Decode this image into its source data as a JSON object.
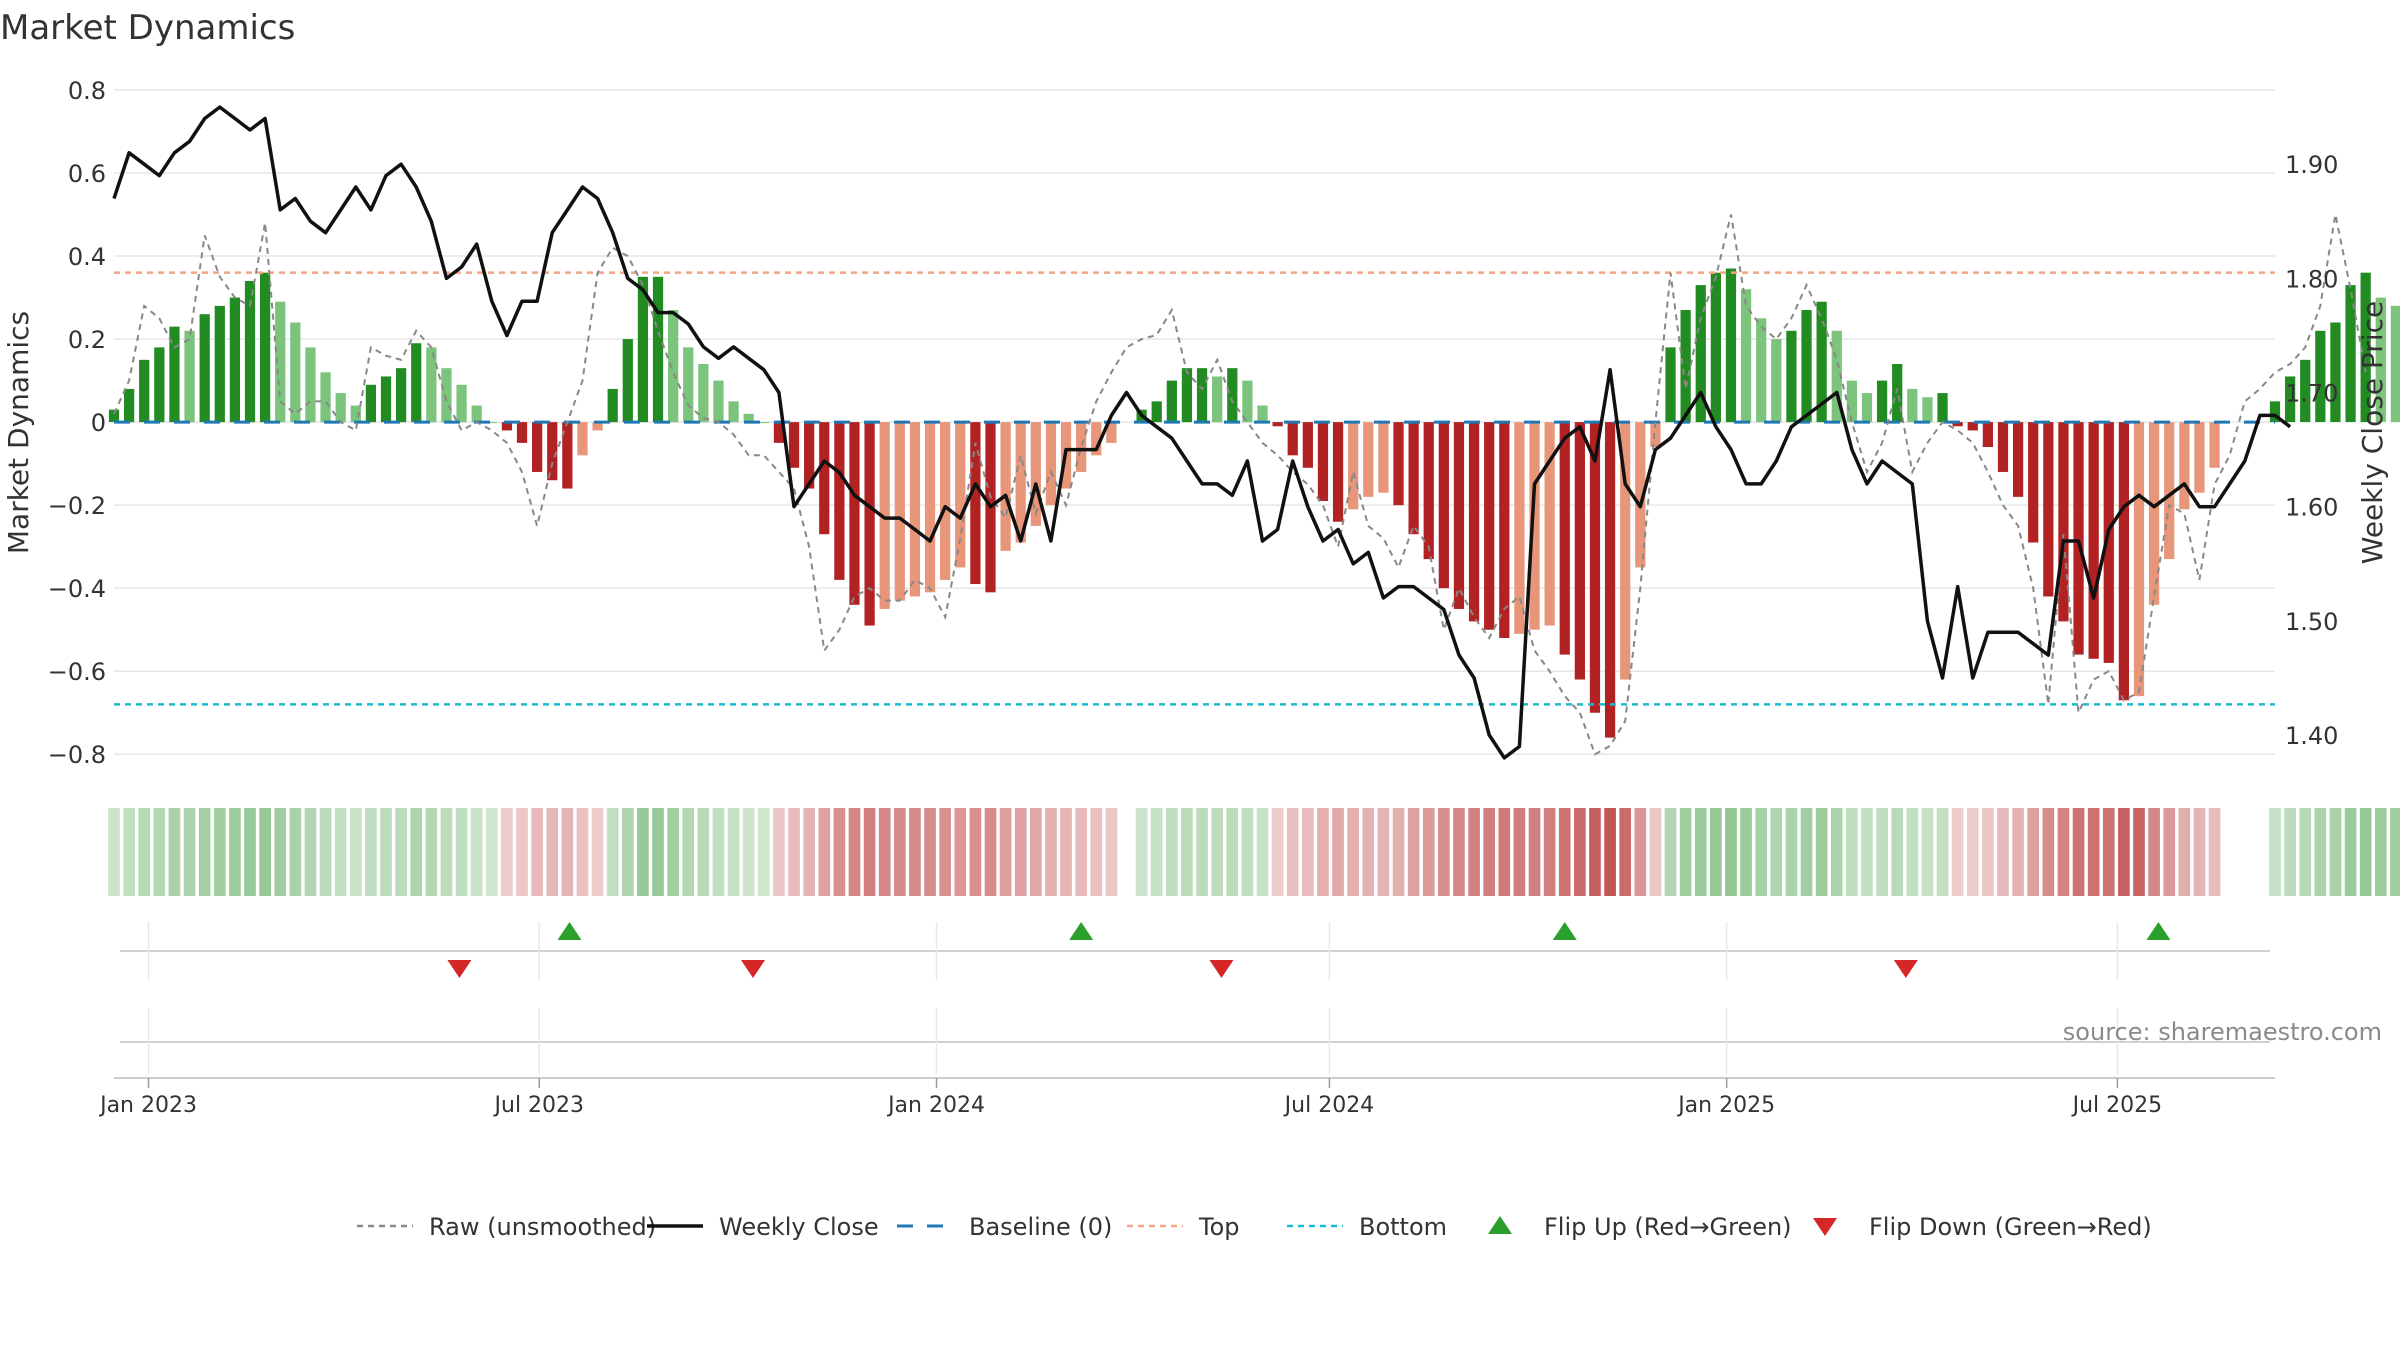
{
  "chart_data": {
    "type": "bar",
    "title": "Market Dynamics",
    "ylabel": "Market Dynamics",
    "y2label": "Weekly Close Price",
    "ylim": [
      -0.85,
      0.8
    ],
    "y2lim": [
      1.365,
      1.965
    ],
    "yticks": [
      0.8,
      0.6,
      0.4,
      0.2,
      0,
      -0.2,
      -0.4,
      -0.6,
      -0.8
    ],
    "ytick_labels": [
      "0.8",
      "0.6",
      "0.4",
      "0.2",
      "0",
      "−0.2",
      "−0.4",
      "−0.6",
      "−0.8"
    ],
    "y2ticks": [
      1.9,
      1.8,
      1.7,
      1.6,
      1.5,
      1.4
    ],
    "y2tick_labels": [
      "1.90",
      "1.80",
      "1.70",
      "1.60",
      "1.50",
      "1.40"
    ],
    "xaxis": {
      "start": "2022-12-16",
      "end": "2025-09-12",
      "ticks": [
        "2023-01-01",
        "2023-07-01",
        "2024-01-01",
        "2024-07-01",
        "2025-01-01",
        "2025-07-01"
      ],
      "tick_labels": [
        "Jan 2023",
        "Jul 2023",
        "Jan 2024",
        "Jul 2024",
        "Jan 2025",
        "Jul 2025"
      ]
    },
    "top_line": 0.36,
    "bottom_line": -0.68,
    "baseline": 0,
    "grid": true,
    "legend_position": "bottom-center",
    "source_text": "source: sharemaestro.com",
    "colors": {
      "strong_green": "#228b22",
      "light_green": "#7cc47c",
      "strong_red": "#b22222",
      "light_red": "#e8967a",
      "raw": "#888888",
      "close": "#111111",
      "baseline": "#1f77b4",
      "top": "#f4a582",
      "bottom": "#17becf",
      "flip_up": "#2ca02c",
      "flip_down": "#d62728"
    },
    "series": [
      {
        "name": "Market Dynamics",
        "start": "2022-12-16",
        "step_days": 7,
        "values": [
          0.03,
          0.08,
          0.15,
          0.18,
          0.23,
          0.22,
          0.26,
          0.28,
          0.3,
          0.34,
          0.36,
          0.29,
          0.24,
          0.18,
          0.12,
          0.07,
          0.04,
          0.09,
          0.11,
          0.13,
          0.19,
          0.18,
          0.13,
          0.09,
          0.04,
          0.0,
          -0.02,
          -0.05,
          -0.12,
          -0.14,
          -0.16,
          -0.08,
          -0.02,
          0.08,
          0.2,
          0.35,
          0.35,
          0.27,
          0.18,
          0.14,
          0.1,
          0.05,
          0.02,
          0.0,
          -0.05,
          -0.11,
          -0.16,
          -0.27,
          -0.38,
          -0.44,
          -0.49,
          -0.45,
          -0.43,
          -0.42,
          -0.41,
          -0.38,
          -0.35,
          -0.39,
          -0.41,
          -0.31,
          -0.29,
          -0.25,
          -0.2,
          -0.16,
          -0.12,
          -0.08,
          -0.05,
          null,
          0.03,
          0.05,
          0.1,
          0.13,
          0.13,
          0.11,
          0.13,
          0.1,
          0.04,
          -0.01,
          -0.08,
          -0.11,
          -0.19,
          -0.24,
          -0.21,
          -0.18,
          -0.17,
          -0.2,
          -0.27,
          -0.33,
          -0.4,
          -0.45,
          -0.48,
          -0.5,
          -0.52,
          -0.51,
          -0.5,
          -0.49,
          -0.56,
          -0.62,
          -0.7,
          -0.76,
          -0.62,
          -0.35,
          -0.06,
          0.18,
          0.27,
          0.33,
          0.36,
          0.37,
          0.32,
          0.25,
          0.2,
          0.22,
          0.27,
          0.29,
          0.22,
          0.1,
          0.07,
          0.1,
          0.14,
          0.08,
          0.06,
          0.07,
          -0.01,
          -0.02,
          -0.06,
          -0.12,
          -0.18,
          -0.29,
          -0.42,
          -0.48,
          -0.56,
          -0.57,
          -0.58,
          -0.67,
          -0.66,
          -0.44,
          -0.33,
          -0.21,
          -0.17,
          -0.11,
          null,
          null,
          null,
          0.05,
          0.11,
          0.15,
          0.22,
          0.24,
          0.33,
          0.36,
          0.3,
          0.28
        ]
      },
      {
        "name": "Raw (unsmoothed)",
        "start": "2022-12-16",
        "step_days": 7,
        "values": [
          0.02,
          0.1,
          0.28,
          0.25,
          0.18,
          0.2,
          0.45,
          0.35,
          0.3,
          0.28,
          0.48,
          0.05,
          0.02,
          0.05,
          0.05,
          0.0,
          -0.02,
          0.18,
          0.16,
          0.15,
          0.22,
          0.18,
          0.05,
          -0.02,
          0.0,
          -0.02,
          -0.05,
          -0.12,
          -0.25,
          -0.1,
          0.0,
          0.1,
          0.36,
          0.42,
          0.4,
          0.33,
          0.22,
          0.12,
          0.04,
          0.01,
          0.0,
          -0.03,
          -0.08,
          -0.08,
          -0.12,
          -0.16,
          -0.3,
          -0.55,
          -0.5,
          -0.42,
          -0.4,
          -0.43,
          -0.43,
          -0.38,
          -0.4,
          -0.47,
          -0.28,
          -0.05,
          -0.18,
          -0.23,
          -0.08,
          -0.22,
          -0.12,
          -0.2,
          -0.06,
          0.05,
          0.12,
          0.18,
          0.2,
          0.21,
          0.27,
          0.12,
          0.08,
          0.15,
          0.05,
          0.0,
          -0.05,
          -0.08,
          -0.12,
          -0.15,
          -0.2,
          -0.3,
          -0.12,
          -0.25,
          -0.28,
          -0.35,
          -0.25,
          -0.3,
          -0.5,
          -0.4,
          -0.47,
          -0.52,
          -0.45,
          -0.42,
          -0.55,
          -0.6,
          -0.66,
          -0.7,
          -0.8,
          -0.78,
          -0.72,
          -0.4,
          0.0,
          0.36,
          0.08,
          0.25,
          0.35,
          0.5,
          0.28,
          0.23,
          0.2,
          0.25,
          0.33,
          0.25,
          0.15,
          0.0,
          -0.12,
          -0.05,
          0.08,
          -0.12,
          -0.05,
          0.0,
          -0.02,
          -0.05,
          -0.12,
          -0.2,
          -0.25,
          -0.4,
          -0.68,
          -0.27,
          -0.7,
          -0.62,
          -0.6,
          -0.67,
          -0.65,
          -0.42,
          -0.2,
          -0.22,
          -0.38,
          -0.15,
          -0.08,
          0.05,
          0.08,
          0.12,
          0.14,
          0.18,
          0.28,
          0.5,
          0.32,
          0.12
        ]
      },
      {
        "name": "Weekly Close",
        "start": "2022-12-16",
        "step_days": 7,
        "values": [
          1.87,
          1.91,
          1.9,
          1.89,
          1.91,
          1.92,
          1.94,
          1.95,
          1.94,
          1.93,
          1.94,
          1.86,
          1.87,
          1.85,
          1.84,
          1.86,
          1.88,
          1.86,
          1.89,
          1.9,
          1.88,
          1.85,
          1.8,
          1.81,
          1.83,
          1.78,
          1.75,
          1.78,
          1.78,
          1.84,
          1.86,
          1.88,
          1.87,
          1.84,
          1.8,
          1.79,
          1.77,
          1.77,
          1.76,
          1.74,
          1.73,
          1.74,
          1.73,
          1.72,
          1.7,
          1.6,
          1.62,
          1.64,
          1.63,
          1.61,
          1.6,
          1.59,
          1.59,
          1.58,
          1.57,
          1.6,
          1.59,
          1.62,
          1.6,
          1.61,
          1.57,
          1.62,
          1.57,
          1.65,
          1.65,
          1.65,
          1.68,
          1.7,
          1.68,
          1.67,
          1.66,
          1.64,
          1.62,
          1.62,
          1.61,
          1.64,
          1.57,
          1.58,
          1.64,
          1.6,
          1.57,
          1.58,
          1.55,
          1.56,
          1.52,
          1.53,
          1.53,
          1.52,
          1.51,
          1.47,
          1.45,
          1.4,
          1.38,
          1.39,
          1.62,
          1.64,
          1.66,
          1.67,
          1.64,
          1.72,
          1.62,
          1.6,
          1.65,
          1.66,
          1.68,
          1.7,
          1.67,
          1.65,
          1.62,
          1.62,
          1.64,
          1.67,
          1.68,
          1.69,
          1.7,
          1.65,
          1.62,
          1.64,
          1.63,
          1.62,
          1.5,
          1.45,
          1.53,
          1.45,
          1.49,
          1.49,
          1.49,
          1.48,
          1.47,
          1.57,
          1.57,
          1.52,
          1.58,
          1.6,
          1.61,
          1.6,
          1.61,
          1.62,
          1.6,
          1.6,
          1.62,
          1.64,
          1.68,
          1.68,
          1.67
        ]
      }
    ],
    "flip_up_dates": [
      "2023-07-15",
      "2024-03-08",
      "2024-10-18",
      "2025-07-20"
    ],
    "flip_down_dates": [
      "2023-05-25",
      "2023-10-08",
      "2024-05-12",
      "2025-03-25"
    ],
    "legend": [
      {
        "label": "Raw (unsmoothed)",
        "kind": "dashed-grey"
      },
      {
        "label": "Weekly Close",
        "kind": "solid-black"
      },
      {
        "label": "Baseline (0)",
        "kind": "dashed-blue"
      },
      {
        "label": "Top",
        "kind": "dotted-orange"
      },
      {
        "label": "Bottom",
        "kind": "dotted-cyan"
      },
      {
        "label": "Flip Up (Red→Green)",
        "kind": "triangle-up"
      },
      {
        "label": "Flip Down (Green→Red)",
        "kind": "triangle-down"
      }
    ]
  }
}
